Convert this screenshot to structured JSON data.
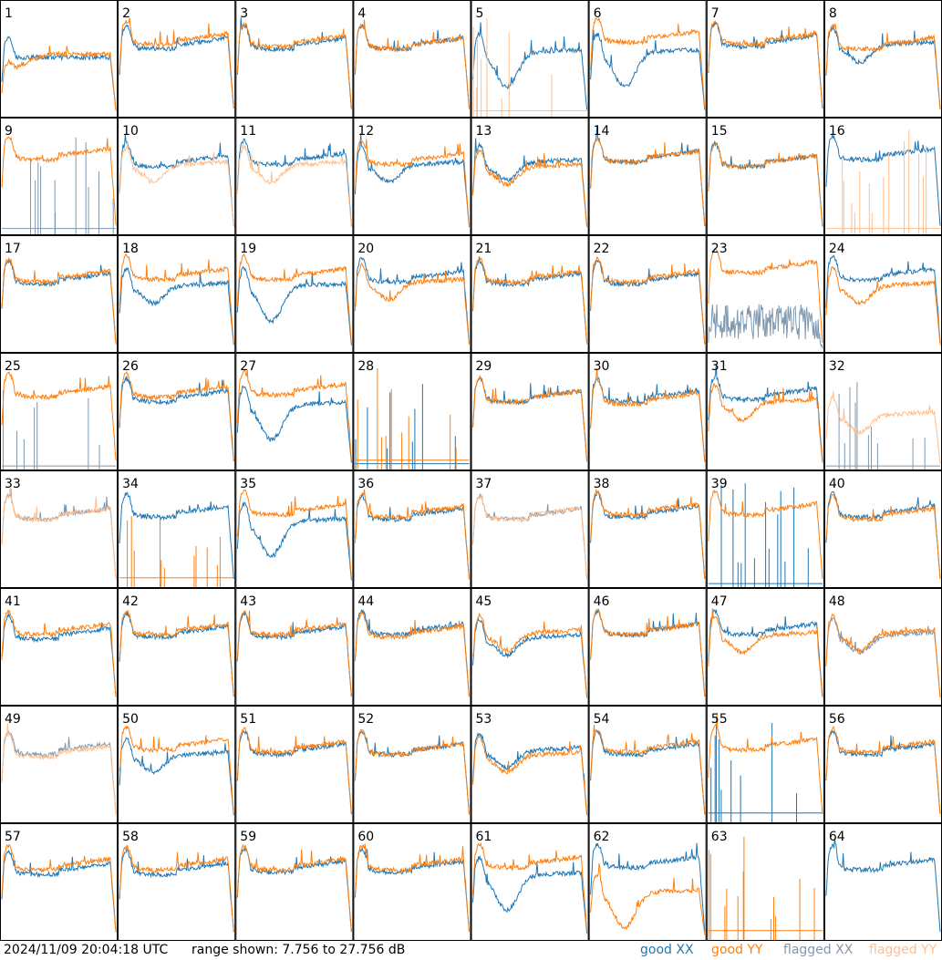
{
  "footer": {
    "timestamp": "2024/11/09 20:04:18 UTC",
    "range_text": "range shown: 7.756 to 27.756 dB",
    "legend": {
      "good_xx": "good XX",
      "good_yy": "good YY",
      "flagged_xx": "flagged XX",
      "flagged_yy": "flagged YY"
    }
  },
  "colors": {
    "good_xx": "#1f77b4",
    "good_yy": "#ff7f0e",
    "flagged_xx": "#7f98b0",
    "flagged_yy": "#ffbf8f"
  },
  "chart_data": {
    "type": "line",
    "layout": "small-multiples 8x8",
    "ylim_db": [
      7.756,
      27.756
    ],
    "x_label": "",
    "y_label": "",
    "series_keys": [
      "XX",
      "YY"
    ],
    "panels": [
      {
        "label": "1",
        "xx": "good",
        "yy": "good",
        "xx_shape": "flat",
        "yy_shape": "bowl",
        "xx_level": 0.52,
        "yy_level": 0.4
      },
      {
        "label": "2",
        "xx": "good",
        "yy": "good",
        "xx_shape": "normal",
        "yy_shape": "normal",
        "xx_level": 0.62,
        "yy_level": 0.66
      },
      {
        "label": "3",
        "xx": "good",
        "yy": "good",
        "xx_shape": "normal",
        "yy_shape": "normal",
        "xx_level": 0.62,
        "yy_level": 0.64
      },
      {
        "label": "4",
        "xx": "good",
        "yy": "good",
        "xx_shape": "normal",
        "yy_shape": "normal",
        "xx_level": 0.62,
        "yy_level": 0.62
      },
      {
        "label": "5",
        "xx": "good",
        "yy": "flagged",
        "xx_shape": "deepdip",
        "yy_shape": "spikes",
        "xx_level": 0.55,
        "yy_level": 0.05
      },
      {
        "label": "6",
        "xx": "good",
        "yy": "good",
        "xx_shape": "deepdip",
        "yy_shape": "normal",
        "xx_level": 0.55,
        "yy_level": 0.68
      },
      {
        "label": "7",
        "xx": "good",
        "yy": "good",
        "xx_shape": "normal",
        "yy_shape": "normal",
        "xx_level": 0.64,
        "yy_level": 0.66
      },
      {
        "label": "8",
        "xx": "good",
        "yy": "good",
        "xx_shape": "dip",
        "yy_shape": "normal",
        "xx_level": 0.6,
        "yy_level": 0.62
      },
      {
        "label": "9",
        "xx": "flagged",
        "yy": "good",
        "xx_shape": "spikes",
        "yy_shape": "normal",
        "xx_level": 0.05,
        "yy_level": 0.68
      },
      {
        "label": "10",
        "xx": "good",
        "yy": "flagged",
        "xx_shape": "normal",
        "yy_shape": "dip",
        "xx_level": 0.62,
        "yy_level": 0.58
      },
      {
        "label": "11",
        "xx": "good",
        "yy": "flagged",
        "xx_shape": "normal",
        "yy_shape": "dip",
        "xx_level": 0.64,
        "yy_level": 0.58
      },
      {
        "label": "12",
        "xx": "good",
        "yy": "good",
        "xx_shape": "dip",
        "yy_shape": "normal",
        "xx_level": 0.58,
        "yy_level": 0.64
      },
      {
        "label": "13",
        "xx": "good",
        "yy": "good",
        "xx_shape": "dip",
        "yy_shape": "dip",
        "xx_level": 0.6,
        "yy_level": 0.56
      },
      {
        "label": "14",
        "xx": "good",
        "yy": "good",
        "xx_shape": "normal",
        "yy_shape": "normal",
        "xx_level": 0.66,
        "yy_level": 0.66
      },
      {
        "label": "15",
        "xx": "good",
        "yy": "good",
        "xx_shape": "normal",
        "yy_shape": "normal",
        "xx_level": 0.62,
        "yy_level": 0.62
      },
      {
        "label": "16",
        "xx": "good",
        "yy": "flagged",
        "xx_shape": "normal",
        "yy_shape": "spikes",
        "xx_level": 0.68,
        "yy_level": 0.05
      },
      {
        "label": "17",
        "xx": "good",
        "yy": "good",
        "xx_shape": "normal",
        "yy_shape": "normal",
        "xx_level": 0.62,
        "yy_level": 0.64
      },
      {
        "label": "18",
        "xx": "good",
        "yy": "good",
        "xx_shape": "dip",
        "yy_shape": "normal",
        "xx_level": 0.55,
        "yy_level": 0.66
      },
      {
        "label": "19",
        "xx": "good",
        "yy": "good",
        "xx_shape": "deepdip",
        "yy_shape": "normal",
        "xx_level": 0.56,
        "yy_level": 0.66
      },
      {
        "label": "20",
        "xx": "good",
        "yy": "good",
        "xx_shape": "normal",
        "yy_shape": "dip",
        "xx_level": 0.64,
        "yy_level": 0.58
      },
      {
        "label": "21",
        "xx": "good",
        "yy": "good",
        "xx_shape": "normal",
        "yy_shape": "normal",
        "xx_level": 0.62,
        "yy_level": 0.64
      },
      {
        "label": "22",
        "xx": "good",
        "yy": "good",
        "xx_shape": "normal",
        "yy_shape": "normal",
        "xx_level": 0.62,
        "yy_level": 0.64
      },
      {
        "label": "23",
        "xx": "flagged",
        "yy": "good",
        "xx_shape": "noise",
        "yy_shape": "normal",
        "xx_level": 0.35,
        "yy_level": 0.72
      },
      {
        "label": "24",
        "xx": "good",
        "yy": "good",
        "xx_shape": "normal",
        "yy_shape": "dip",
        "xx_level": 0.66,
        "yy_level": 0.55
      },
      {
        "label": "25",
        "xx": "flagged",
        "yy": "good",
        "xx_shape": "spikes",
        "yy_shape": "normal",
        "xx_level": 0.03,
        "yy_level": 0.66
      },
      {
        "label": "26",
        "xx": "good",
        "yy": "good",
        "xx_shape": "normal",
        "yy_shape": "normal",
        "xx_level": 0.62,
        "yy_level": 0.66
      },
      {
        "label": "27",
        "xx": "good",
        "yy": "good",
        "xx_shape": "deepdip",
        "yy_shape": "normal",
        "xx_level": 0.55,
        "yy_level": 0.68
      },
      {
        "label": "28",
        "xx": "good",
        "yy": "good",
        "xx_shape": "spikes",
        "yy_shape": "spikes",
        "xx_level": 0.05,
        "yy_level": 0.08
      },
      {
        "label": "29",
        "xx": "good",
        "yy": "good",
        "xx_shape": "normal",
        "yy_shape": "normal",
        "xx_level": 0.62,
        "yy_level": 0.62
      },
      {
        "label": "30",
        "xx": "good",
        "yy": "good",
        "xx_shape": "normal",
        "yy_shape": "normal",
        "xx_level": 0.62,
        "yy_level": 0.6
      },
      {
        "label": "31",
        "xx": "good",
        "yy": "good",
        "xx_shape": "normal",
        "yy_shape": "dip",
        "xx_level": 0.64,
        "yy_level": 0.56
      },
      {
        "label": "32",
        "xx": "flagged",
        "yy": "flagged",
        "xx_shape": "spikes",
        "yy_shape": "dip",
        "xx_level": 0.03,
        "yy_level": 0.45
      },
      {
        "label": "33",
        "xx": "flagged",
        "yy": "flagged",
        "xx_shape": "normal",
        "yy_shape": "normal",
        "xx_level": 0.62,
        "yy_level": 0.62
      },
      {
        "label": "34",
        "xx": "good",
        "yy": "good",
        "xx_shape": "normal",
        "yy_shape": "spikes",
        "xx_level": 0.64,
        "yy_level": 0.08
      },
      {
        "label": "35",
        "xx": "good",
        "yy": "good",
        "xx_shape": "deepdip",
        "yy_shape": "normal",
        "xx_level": 0.56,
        "yy_level": 0.66
      },
      {
        "label": "36",
        "xx": "good",
        "yy": "good",
        "xx_shape": "normal",
        "yy_shape": "normal",
        "xx_level": 0.62,
        "yy_level": 0.64
      },
      {
        "label": "37",
        "xx": "flagged",
        "yy": "flagged",
        "xx_shape": "normal",
        "yy_shape": "normal",
        "xx_level": 0.62,
        "yy_level": 0.62
      },
      {
        "label": "38",
        "xx": "good",
        "yy": "good",
        "xx_shape": "normal",
        "yy_shape": "normal",
        "xx_level": 0.64,
        "yy_level": 0.66
      },
      {
        "label": "39",
        "xx": "good",
        "yy": "good",
        "xx_shape": "spikes",
        "yy_shape": "normal",
        "xx_level": 0.03,
        "yy_level": 0.66
      },
      {
        "label": "40",
        "xx": "good",
        "yy": "good",
        "xx_shape": "normal",
        "yy_shape": "normal",
        "xx_level": 0.64,
        "yy_level": 0.62
      },
      {
        "label": "41",
        "xx": "good",
        "yy": "good",
        "xx_shape": "normal",
        "yy_shape": "normal",
        "xx_level": 0.6,
        "yy_level": 0.64
      },
      {
        "label": "42",
        "xx": "good",
        "yy": "good",
        "xx_shape": "normal",
        "yy_shape": "normal",
        "xx_level": 0.62,
        "yy_level": 0.64
      },
      {
        "label": "43",
        "xx": "good",
        "yy": "good",
        "xx_shape": "normal",
        "yy_shape": "normal",
        "xx_level": 0.62,
        "yy_level": 0.64
      },
      {
        "label": "44",
        "xx": "good",
        "yy": "good",
        "xx_shape": "normal",
        "yy_shape": "normal",
        "xx_level": 0.64,
        "yy_level": 0.62
      },
      {
        "label": "45",
        "xx": "good",
        "yy": "good",
        "xx_shape": "dip",
        "yy_shape": "dip",
        "xx_level": 0.56,
        "yy_level": 0.6
      },
      {
        "label": "46",
        "xx": "good",
        "yy": "good",
        "xx_shape": "normal",
        "yy_shape": "normal",
        "xx_level": 0.64,
        "yy_level": 0.64
      },
      {
        "label": "47",
        "xx": "good",
        "yy": "good",
        "xx_shape": "normal",
        "yy_shape": "dip",
        "xx_level": 0.64,
        "yy_level": 0.58
      },
      {
        "label": "48",
        "xx": "flagged",
        "yy": "good",
        "xx_shape": "dip",
        "yy_shape": "dip",
        "xx_level": 0.58,
        "yy_level": 0.6
      },
      {
        "label": "49",
        "xx": "flagged",
        "yy": "flagged",
        "xx_shape": "normal",
        "yy_shape": "normal",
        "xx_level": 0.62,
        "yy_level": 0.6
      },
      {
        "label": "50",
        "xx": "good",
        "yy": "good",
        "xx_shape": "dip",
        "yy_shape": "normal",
        "xx_level": 0.56,
        "yy_level": 0.66
      },
      {
        "label": "51",
        "xx": "good",
        "yy": "good",
        "xx_shape": "normal",
        "yy_shape": "normal",
        "xx_level": 0.62,
        "yy_level": 0.64
      },
      {
        "label": "52",
        "xx": "good",
        "yy": "good",
        "xx_shape": "normal",
        "yy_shape": "normal",
        "xx_level": 0.62,
        "yy_level": 0.62
      },
      {
        "label": "53",
        "xx": "good",
        "yy": "good",
        "xx_shape": "dip",
        "yy_shape": "dip",
        "xx_level": 0.6,
        "yy_level": 0.56
      },
      {
        "label": "54",
        "xx": "good",
        "yy": "good",
        "xx_shape": "normal",
        "yy_shape": "normal",
        "xx_level": 0.62,
        "yy_level": 0.64
      },
      {
        "label": "55",
        "xx": "good",
        "yy": "good",
        "xx_shape": "spikes",
        "yy_shape": "normal",
        "xx_level": 0.08,
        "yy_level": 0.66
      },
      {
        "label": "56",
        "xx": "good",
        "yy": "good",
        "xx_shape": "normal",
        "yy_shape": "normal",
        "xx_level": 0.62,
        "yy_level": 0.64
      },
      {
        "label": "57",
        "xx": "good",
        "yy": "good",
        "xx_shape": "normal",
        "yy_shape": "normal",
        "xx_level": 0.6,
        "yy_level": 0.64
      },
      {
        "label": "58",
        "xx": "good",
        "yy": "good",
        "xx_shape": "normal",
        "yy_shape": "normal",
        "xx_level": 0.6,
        "yy_level": 0.64
      },
      {
        "label": "59",
        "xx": "good",
        "yy": "good",
        "xx_shape": "normal",
        "yy_shape": "normal",
        "xx_level": 0.62,
        "yy_level": 0.64
      },
      {
        "label": "60",
        "xx": "good",
        "yy": "good",
        "xx_shape": "normal",
        "yy_shape": "normal",
        "xx_level": 0.62,
        "yy_level": 0.64
      },
      {
        "label": "61",
        "xx": "good",
        "yy": "good",
        "xx_shape": "deepdip",
        "yy_shape": "normal",
        "xx_level": 0.55,
        "yy_level": 0.66
      },
      {
        "label": "62",
        "xx": "good",
        "yy": "good",
        "xx_shape": "normal",
        "yy_shape": "deepdip",
        "xx_level": 0.66,
        "yy_level": 0.4
      },
      {
        "label": "63",
        "xx": "good",
        "yy": "good",
        "xx_shape": "none",
        "yy_shape": "spikes",
        "xx_level": 0.0,
        "yy_level": 0.08
      },
      {
        "label": "64",
        "xx": "good",
        "yy": "good",
        "xx_shape": "normal",
        "yy_shape": "none",
        "xx_level": 0.64,
        "yy_level": 0.0
      }
    ]
  }
}
